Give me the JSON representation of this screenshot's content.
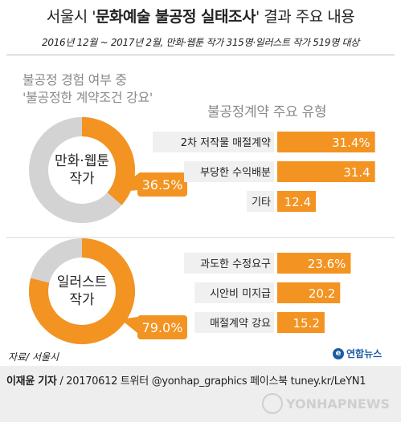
{
  "header": {
    "title_pre": "서울시 '",
    "title_highlight": "문화예술 불공정 실태조사",
    "title_post": "' 결과 주요 내용",
    "subtitle": "2016년 12월 ~ 2017년 2월, 만화·웹툰 작가 315명·일러스트 작가 519명 대상"
  },
  "left_section": {
    "title_line1": "불공정 경험 여부 중",
    "title_line2": "'불공정한 계약조건 강요'"
  },
  "right_section": {
    "title": "불공정계약 주요 유형"
  },
  "colors": {
    "accent": "#f39321",
    "ring_bg": "#d3d3d3",
    "label_bg": "#f0f0f0"
  },
  "chart_data": [
    {
      "type": "pie",
      "center_label": [
        "만화·웹툰",
        "작가"
      ],
      "value": 36.5,
      "value_label": "36.5%"
    },
    {
      "type": "pie",
      "center_label": [
        "일러스트",
        "작가"
      ],
      "value": 79.0,
      "value_label": "79.0%"
    },
    {
      "type": "bar",
      "group": "만화·웹툰 작가",
      "categories": [
        "2차 저작물 매절계약",
        "부당한 수익배분",
        "기타"
      ],
      "values": [
        31.4,
        31.4,
        12.4
      ],
      "value_labels": [
        "31.4%",
        "31.4",
        "12.4"
      ],
      "xlim": [
        0,
        32
      ]
    },
    {
      "type": "bar",
      "group": "일러스트 작가",
      "categories": [
        "과도한 수정요구",
        "시안비 미지급",
        "매절계약 강요"
      ],
      "values": [
        23.6,
        20.2,
        15.2
      ],
      "value_labels": [
        "23.6%",
        "20.2",
        "15.2"
      ],
      "xlim": [
        0,
        32
      ]
    }
  ],
  "source": "자료/ 서울시",
  "logo_text": "연합뉴스",
  "footer": {
    "reporter": "이재윤 기자",
    "info": " / 20170612  트위터 @yonhap_graphics  페이스북 tuney.kr/LeYN1",
    "watermark": "YONHAPNEWS"
  }
}
